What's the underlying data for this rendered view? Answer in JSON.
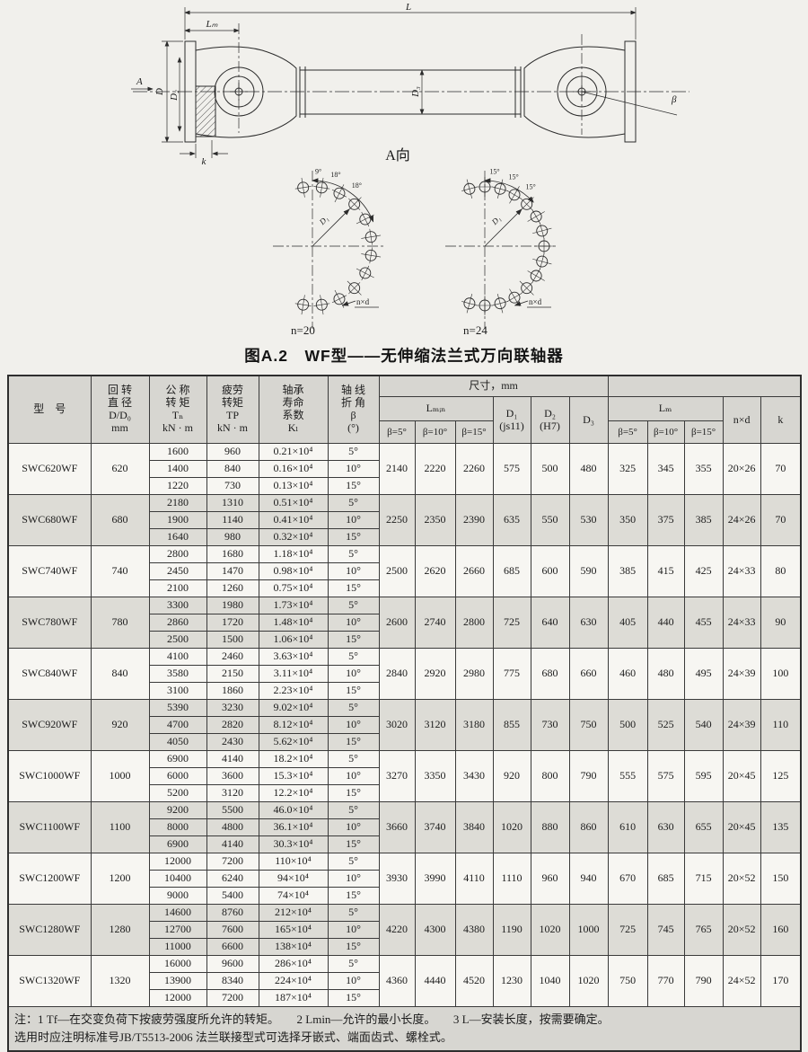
{
  "caption": "图A.2　WF型——无伸缩法兰式万向联轴器",
  "drawing": {
    "labels": {
      "L": "L",
      "Lm": "Lₘ",
      "A": "A",
      "D": "D",
      "D2": "D₂",
      "D3": "D₃",
      "k": "k",
      "beta": "β",
      "view": "A向"
    }
  },
  "bolt_diagrams": [
    {
      "count": "n=20",
      "angles": [
        "9°",
        "18°",
        "18°"
      ],
      "radius": "D₁",
      "holes": "n×d",
      "step": 18,
      "start": 9
    },
    {
      "count": "n=24",
      "angles": [
        "15°",
        "15°",
        "15°"
      ],
      "radius": "D₁",
      "holes": "n×d",
      "step": 15,
      "start": 0
    }
  ],
  "table": {
    "headers": {
      "model": "型　号",
      "diameter": "回 转\n直 径\nD/D₀\nmm",
      "tn": "公 称\n转 矩\nTₙ\nkN · m",
      "tp": "疲劳\n转矩\nTP\nkN · m",
      "kl": "轴承\n寿命\n系数\nKₗ",
      "beta": "轴 线\n折 角\nβ\n(°)",
      "size": "尺寸，mm",
      "lmin": "Lₘᵢₙ",
      "lm": "Lₘ",
      "d1": "D₁\n(js11)",
      "d2": "D₂\n(H7)",
      "d3": "D₃",
      "nxd": "n×d",
      "k": "k"
    },
    "beta_cols": [
      "β=5°",
      "β=10°",
      "β=15°"
    ],
    "blocks": [
      {
        "model": "SWC620WF",
        "d": "620",
        "rows": [
          [
            "1600",
            "960",
            "0.21×10⁴",
            "5°"
          ],
          [
            "1400",
            "840",
            "0.16×10⁴",
            "10°"
          ],
          [
            "1220",
            "730",
            "0.13×10⁴",
            "15°"
          ]
        ],
        "dims": [
          "2140",
          "2220",
          "2260",
          "575",
          "500",
          "480",
          "325",
          "345",
          "355",
          "20×26",
          "70"
        ]
      },
      {
        "model": "SWC680WF",
        "d": "680",
        "rows": [
          [
            "2180",
            "1310",
            "0.51×10⁴",
            "5°"
          ],
          [
            "1900",
            "1140",
            "0.41×10⁴",
            "10°"
          ],
          [
            "1640",
            "980",
            "0.32×10⁴",
            "15°"
          ]
        ],
        "dims": [
          "2250",
          "2350",
          "2390",
          "635",
          "550",
          "530",
          "350",
          "375",
          "385",
          "24×26",
          "70"
        ]
      },
      {
        "model": "SWC740WF",
        "d": "740",
        "rows": [
          [
            "2800",
            "1680",
            "1.18×10⁴",
            "5°"
          ],
          [
            "2450",
            "1470",
            "0.98×10⁴",
            "10°"
          ],
          [
            "2100",
            "1260",
            "0.75×10⁴",
            "15°"
          ]
        ],
        "dims": [
          "2500",
          "2620",
          "2660",
          "685",
          "600",
          "590",
          "385",
          "415",
          "425",
          "24×33",
          "80"
        ]
      },
      {
        "model": "SWC780WF",
        "d": "780",
        "rows": [
          [
            "3300",
            "1980",
            "1.73×10⁴",
            "5°"
          ],
          [
            "2860",
            "1720",
            "1.48×10⁴",
            "10°"
          ],
          [
            "2500",
            "1500",
            "1.06×10⁴",
            "15°"
          ]
        ],
        "dims": [
          "2600",
          "2740",
          "2800",
          "725",
          "640",
          "630",
          "405",
          "440",
          "455",
          "24×33",
          "90"
        ]
      },
      {
        "model": "SWC840WF",
        "d": "840",
        "rows": [
          [
            "4100",
            "2460",
            "3.63×10⁴",
            "5°"
          ],
          [
            "3580",
            "2150",
            "3.11×10⁴",
            "10°"
          ],
          [
            "3100",
            "1860",
            "2.23×10⁴",
            "15°"
          ]
        ],
        "dims": [
          "2840",
          "2920",
          "2980",
          "775",
          "680",
          "660",
          "460",
          "480",
          "495",
          "24×39",
          "100"
        ]
      },
      {
        "model": "SWC920WF",
        "d": "920",
        "rows": [
          [
            "5390",
            "3230",
            "9.02×10⁴",
            "5°"
          ],
          [
            "4700",
            "2820",
            "8.12×10⁴",
            "10°"
          ],
          [
            "4050",
            "2430",
            "5.62×10⁴",
            "15°"
          ]
        ],
        "dims": [
          "3020",
          "3120",
          "3180",
          "855",
          "730",
          "750",
          "500",
          "525",
          "540",
          "24×39",
          "110"
        ]
      },
      {
        "model": "SWC1000WF",
        "d": "1000",
        "rows": [
          [
            "6900",
            "4140",
            "18.2×10⁴",
            "5°"
          ],
          [
            "6000",
            "3600",
            "15.3×10⁴",
            "10°"
          ],
          [
            "5200",
            "3120",
            "12.2×10⁴",
            "15°"
          ]
        ],
        "dims": [
          "3270",
          "3350",
          "3430",
          "920",
          "800",
          "790",
          "555",
          "575",
          "595",
          "20×45",
          "125"
        ]
      },
      {
        "model": "SWC1100WF",
        "d": "1100",
        "rows": [
          [
            "9200",
            "5500",
            "46.0×10⁴",
            "5°"
          ],
          [
            "8000",
            "4800",
            "36.1×10⁴",
            "10°"
          ],
          [
            "6900",
            "4140",
            "30.3×10⁴",
            "15°"
          ]
        ],
        "dims": [
          "3660",
          "3740",
          "3840",
          "1020",
          "880",
          "860",
          "610",
          "630",
          "655",
          "20×45",
          "135"
        ]
      },
      {
        "model": "SWC1200WF",
        "d": "1200",
        "rows": [
          [
            "12000",
            "7200",
            "110×10⁴",
            "5°"
          ],
          [
            "10400",
            "6240",
            "94×10⁴",
            "10°"
          ],
          [
            "9000",
            "5400",
            "74×10⁴",
            "15°"
          ]
        ],
        "dims": [
          "3930",
          "3990",
          "4110",
          "1110",
          "960",
          "940",
          "670",
          "685",
          "715",
          "20×52",
          "150"
        ]
      },
      {
        "model": "SWC1280WF",
        "d": "1280",
        "rows": [
          [
            "14600",
            "8760",
            "212×10⁴",
            "5°"
          ],
          [
            "12700",
            "7600",
            "165×10⁴",
            "10°"
          ],
          [
            "11000",
            "6600",
            "138×10⁴",
            "15°"
          ]
        ],
        "dims": [
          "4220",
          "4300",
          "4380",
          "1190",
          "1020",
          "1000",
          "725",
          "745",
          "765",
          "20×52",
          "160"
        ]
      },
      {
        "model": "SWC1320WF",
        "d": "1320",
        "rows": [
          [
            "16000",
            "9600",
            "286×10⁴",
            "5°"
          ],
          [
            "13900",
            "8340",
            "224×10⁴",
            "10°"
          ],
          [
            "12000",
            "7200",
            "187×10⁴",
            "15°"
          ]
        ],
        "dims": [
          "4360",
          "4440",
          "4520",
          "1230",
          "1040",
          "1020",
          "750",
          "770",
          "790",
          "24×52",
          "170"
        ]
      }
    ],
    "notes": [
      "注：1 Tf—在交变负荷下按疲劳强度所允许的转矩。　　2 Lmin—允许的最小长度。　　3 L—安装长度，按需要确定。",
      "选用时应注明标准号JB/T5513-2006 法兰联接型式可选择牙嵌式、端面齿式、螺栓式。"
    ]
  }
}
